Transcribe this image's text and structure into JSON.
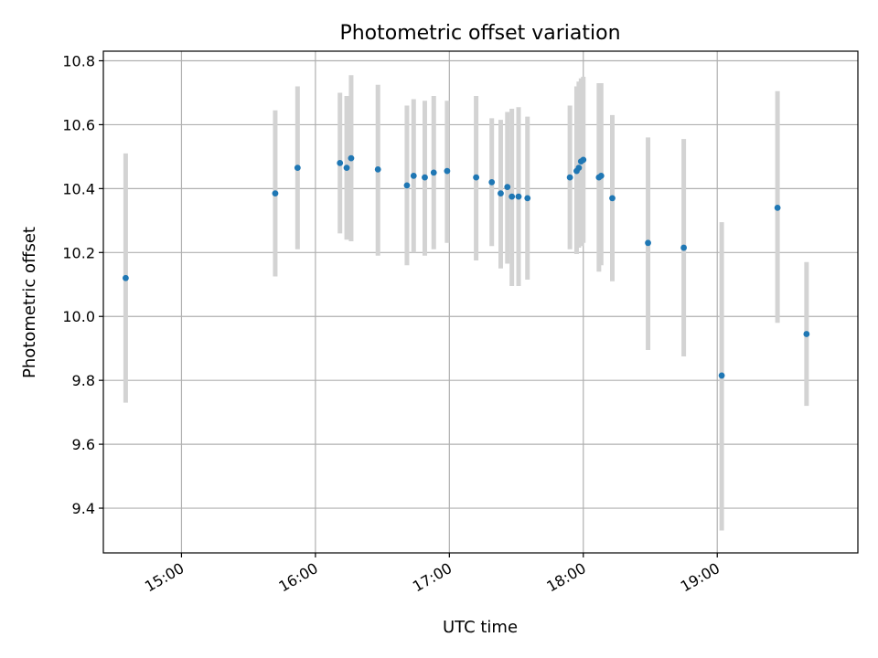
{
  "chart_data": {
    "type": "scatter",
    "title": "Photometric offset variation",
    "xlabel": "UTC time",
    "ylabel": "Photometric offset",
    "x_ticks": [
      "15:00",
      "16:00",
      "17:00",
      "18:00",
      "19:00"
    ],
    "y_ticks": [
      "9.4",
      "9.6",
      "9.8",
      "10.0",
      "10.2",
      "10.4",
      "10.6",
      "10.8"
    ],
    "xlim": [
      "14:25",
      "20:03"
    ],
    "ylim": [
      9.26,
      10.83
    ],
    "grid": true,
    "legend": "none",
    "colors": {
      "point": "#1f77b4",
      "errorbar": "#d3d3d3"
    },
    "series": [
      {
        "points": [
          {
            "x": "14:35",
            "y": 10.12,
            "ylow": 9.73,
            "yhigh": 10.51
          },
          {
            "x": "15:42",
            "y": 10.385,
            "ylow": 10.125,
            "yhigh": 10.645
          },
          {
            "x": "15:52",
            "y": 10.465,
            "ylow": 10.21,
            "yhigh": 10.72
          },
          {
            "x": "16:11",
            "y": 10.48,
            "ylow": 10.26,
            "yhigh": 10.7
          },
          {
            "x": "16:14",
            "y": 10.465,
            "ylow": 10.24,
            "yhigh": 10.69
          },
          {
            "x": "16:16",
            "y": 10.495,
            "ylow": 10.235,
            "yhigh": 10.755
          },
          {
            "x": "16:28",
            "y": 10.46,
            "ylow": 10.19,
            "yhigh": 10.725
          },
          {
            "x": "16:41",
            "y": 10.41,
            "ylow": 10.16,
            "yhigh": 10.66
          },
          {
            "x": "16:44",
            "y": 10.44,
            "ylow": 10.2,
            "yhigh": 10.68
          },
          {
            "x": "16:49",
            "y": 10.435,
            "ylow": 10.19,
            "yhigh": 10.675
          },
          {
            "x": "16:53",
            "y": 10.45,
            "ylow": 10.21,
            "yhigh": 10.69
          },
          {
            "x": "16:59",
            "y": 10.455,
            "ylow": 10.23,
            "yhigh": 10.675
          },
          {
            "x": "17:12",
            "y": 10.435,
            "ylow": 10.175,
            "yhigh": 10.69
          },
          {
            "x": "17:19",
            "y": 10.42,
            "ylow": 10.22,
            "yhigh": 10.62
          },
          {
            "x": "17:23",
            "y": 10.385,
            "ylow": 10.15,
            "yhigh": 10.615
          },
          {
            "x": "17:26",
            "y": 10.405,
            "ylow": 10.165,
            "yhigh": 10.64
          },
          {
            "x": "17:28",
            "y": 10.375,
            "ylow": 10.095,
            "yhigh": 10.65
          },
          {
            "x": "17:31",
            "y": 10.375,
            "ylow": 10.095,
            "yhigh": 10.655
          },
          {
            "x": "17:35",
            "y": 10.37,
            "ylow": 10.115,
            "yhigh": 10.625
          },
          {
            "x": "17:54",
            "y": 10.435,
            "ylow": 10.21,
            "yhigh": 10.66
          },
          {
            "x": "17:57",
            "y": 10.455,
            "ylow": 10.195,
            "yhigh": 10.72
          },
          {
            "x": "17:58",
            "y": 10.465,
            "ylow": 10.215,
            "yhigh": 10.735
          },
          {
            "x": "17:59",
            "y": 10.485,
            "ylow": 10.22,
            "yhigh": 10.745
          },
          {
            "x": "18:00",
            "y": 10.49,
            "ylow": 10.23,
            "yhigh": 10.75
          },
          {
            "x": "18:07",
            "y": 10.435,
            "ylow": 10.14,
            "yhigh": 10.73
          },
          {
            "x": "18:08",
            "y": 10.44,
            "ylow": 10.16,
            "yhigh": 10.73
          },
          {
            "x": "18:13",
            "y": 10.37,
            "ylow": 10.11,
            "yhigh": 10.63
          },
          {
            "x": "18:29",
            "y": 10.23,
            "ylow": 9.895,
            "yhigh": 10.56
          },
          {
            "x": "18:45",
            "y": 10.215,
            "ylow": 9.875,
            "yhigh": 10.555
          },
          {
            "x": "19:02",
            "y": 9.815,
            "ylow": 9.33,
            "yhigh": 10.295
          },
          {
            "x": "19:27",
            "y": 10.34,
            "ylow": 9.98,
            "yhigh": 10.705
          },
          {
            "x": "19:40",
            "y": 9.945,
            "ylow": 9.72,
            "yhigh": 10.17
          }
        ]
      }
    ]
  }
}
